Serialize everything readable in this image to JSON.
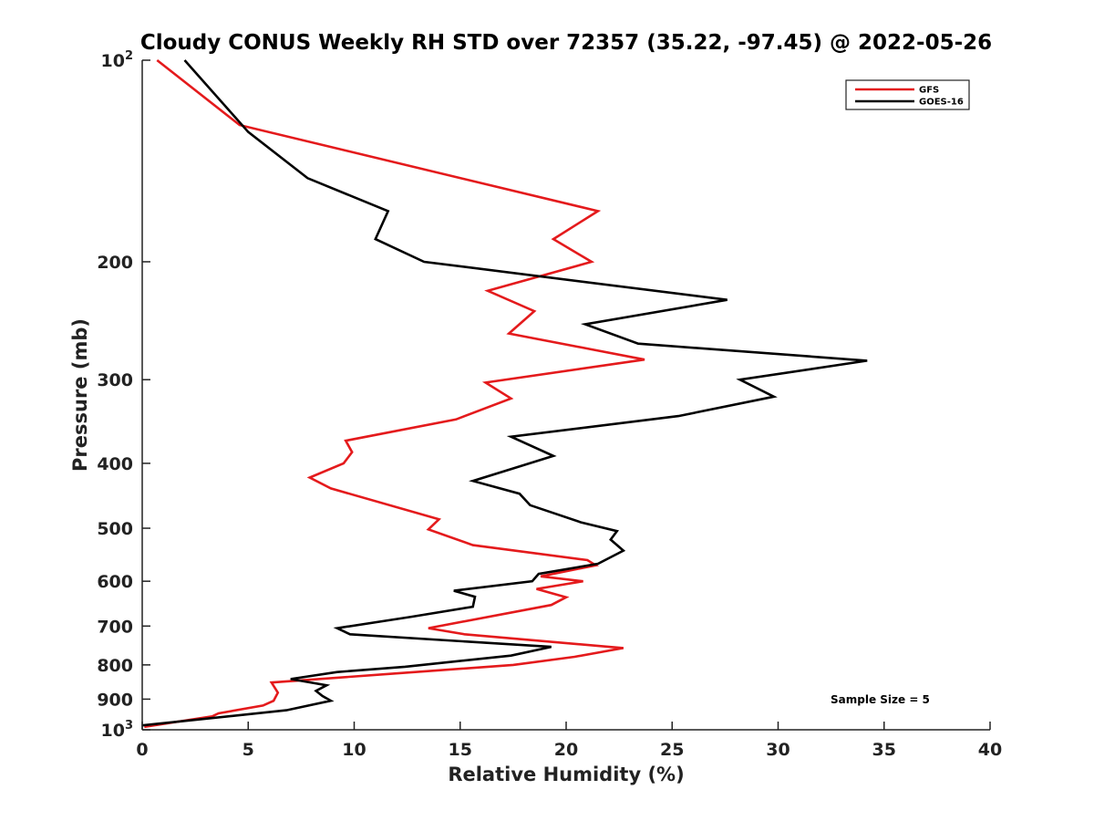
{
  "chart_data": {
    "type": "line",
    "title": "Cloudy CONUS Weekly RH STD over 72357 (35.22, -97.45) @ 2022-05-26",
    "xlabel": "Relative Humidity (%)",
    "ylabel": "Pressure (mb)",
    "xlim": [
      0,
      40
    ],
    "ylim": [
      100,
      1000
    ],
    "y_scale": "log",
    "y_reversed": true,
    "grid": false,
    "legend_position": "top-right",
    "x_ticks": [
      0,
      5,
      10,
      15,
      20,
      25,
      30,
      35,
      40
    ],
    "x_tick_labels": [
      "0",
      "5",
      "10",
      "15",
      "20",
      "25",
      "30",
      "35",
      "40"
    ],
    "y_ticks": [
      100,
      200,
      300,
      400,
      500,
      600,
      700,
      800,
      900,
      1000
    ],
    "y_tick_labels": [
      {
        "base": "10",
        "exp": "2"
      },
      {
        "base": "200",
        "exp": ""
      },
      {
        "base": "300",
        "exp": ""
      },
      {
        "base": "400",
        "exp": ""
      },
      {
        "base": "500",
        "exp": ""
      },
      {
        "base": "600",
        "exp": ""
      },
      {
        "base": "700",
        "exp": ""
      },
      {
        "base": "800",
        "exp": ""
      },
      {
        "base": "900",
        "exp": ""
      },
      {
        "base": "10",
        "exp": "3"
      }
    ],
    "annotation": "Sample Size = 5",
    "series": [
      {
        "name": "GFS",
        "color": "#e41a1c",
        "points": [
          [
            0.7,
            100
          ],
          [
            4.6,
            125
          ],
          [
            21.5,
            168
          ],
          [
            19.4,
            185
          ],
          [
            21.2,
            200
          ],
          [
            16.3,
            221
          ],
          [
            18.5,
            237
          ],
          [
            17.3,
            256
          ],
          [
            23.7,
            280
          ],
          [
            16.2,
            303
          ],
          [
            17.4,
            320
          ],
          [
            14.8,
            344
          ],
          [
            9.6,
            370
          ],
          [
            9.9,
            385
          ],
          [
            9.5,
            400
          ],
          [
            7.9,
            420
          ],
          [
            8.9,
            436
          ],
          [
            14.0,
            485
          ],
          [
            13.5,
            502
          ],
          [
            15.6,
            530
          ],
          [
            21.0,
            558
          ],
          [
            21.4,
            568
          ],
          [
            18.8,
            590
          ],
          [
            20.8,
            600
          ],
          [
            18.6,
            616
          ],
          [
            20.0,
            634
          ],
          [
            19.3,
            651
          ],
          [
            13.5,
            705
          ],
          [
            15.2,
            720
          ],
          [
            22.7,
            755
          ],
          [
            20.4,
            778
          ],
          [
            17.5,
            800
          ],
          [
            11.7,
            825
          ],
          [
            6.1,
            850
          ],
          [
            6.4,
            880
          ],
          [
            6.2,
            905
          ],
          [
            5.7,
            920
          ],
          [
            3.6,
            945
          ],
          [
            3.3,
            955
          ],
          [
            0.1,
            990
          ]
        ]
      },
      {
        "name": "GOES-16",
        "color": "#000000",
        "points": [
          [
            2.0,
            100
          ],
          [
            5.0,
            128
          ],
          [
            7.8,
            150
          ],
          [
            11.6,
            168
          ],
          [
            11.0,
            185
          ],
          [
            13.3,
            200
          ],
          [
            27.6,
            228
          ],
          [
            20.9,
            248
          ],
          [
            23.4,
            265
          ],
          [
            34.2,
            281
          ],
          [
            28.2,
            300
          ],
          [
            29.8,
            318
          ],
          [
            25.3,
            340
          ],
          [
            17.4,
            365
          ],
          [
            19.4,
            390
          ],
          [
            15.6,
            425
          ],
          [
            17.8,
            444
          ],
          [
            18.3,
            462
          ],
          [
            20.7,
            490
          ],
          [
            22.4,
            505
          ],
          [
            22.1,
            520
          ],
          [
            22.7,
            540
          ],
          [
            21.5,
            565
          ],
          [
            18.7,
            585
          ],
          [
            18.4,
            600
          ],
          [
            14.7,
            620
          ],
          [
            15.7,
            633
          ],
          [
            15.6,
            655
          ],
          [
            12.7,
            678
          ],
          [
            9.2,
            705
          ],
          [
            9.8,
            720
          ],
          [
            19.3,
            752
          ],
          [
            17.4,
            775
          ],
          [
            12.4,
            805
          ],
          [
            9.2,
            820
          ],
          [
            7.0,
            840
          ],
          [
            8.7,
            858
          ],
          [
            8.2,
            875
          ],
          [
            8.5,
            890
          ],
          [
            8.9,
            905
          ],
          [
            6.8,
            935
          ],
          [
            0.0,
            985
          ]
        ]
      }
    ]
  }
}
